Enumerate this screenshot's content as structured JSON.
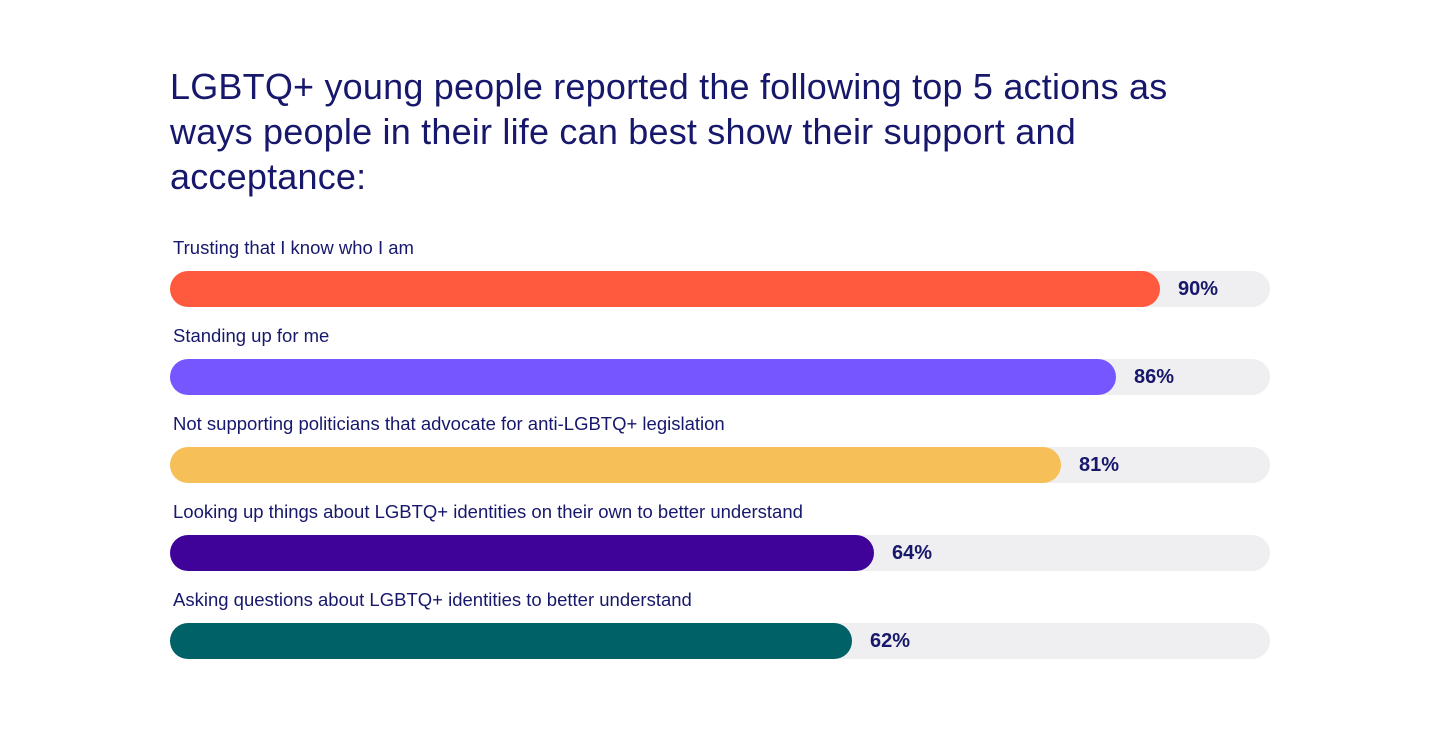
{
  "chart_data": {
    "type": "bar",
    "orientation": "horizontal",
    "title": "LGBTQ+ young people reported the following top 5 actions as ways people in their life can best show their support and acceptance:",
    "categories": [
      "Trusting that I know who I am",
      "Standing up for me",
      "Not supporting politicians that advocate for anti-LGBTQ+ legislation",
      "Looking up things about LGBTQ+ identities on their own to better understand",
      "Asking questions about LGBTQ+ identities to better understand"
    ],
    "values": [
      90,
      86,
      81,
      64,
      62
    ],
    "value_labels": [
      "90%",
      "86%",
      "81%",
      "64%",
      "62%"
    ],
    "colors": [
      "#ff5a3d",
      "#7657ff",
      "#f7bf57",
      "#3f0399",
      "#006166"
    ],
    "track_color": "#efeff1",
    "xlim": [
      0,
      100
    ],
    "unit": "%"
  }
}
